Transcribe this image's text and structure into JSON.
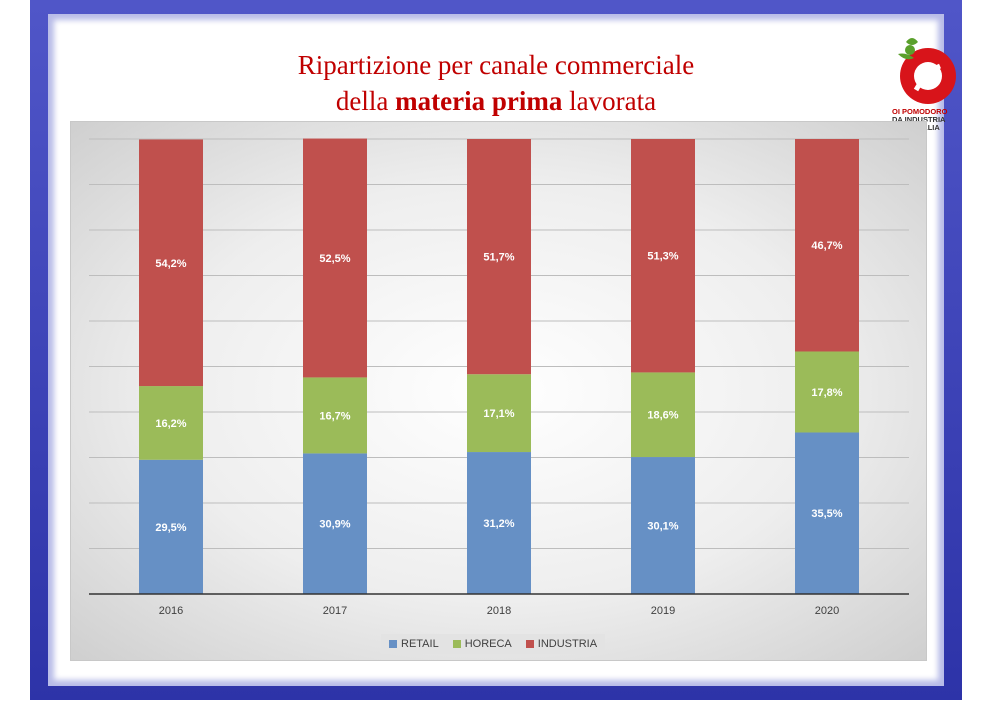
{
  "slide": {
    "title_line1": "Ripartizione per canale commerciale",
    "title_line2_pre": "della ",
    "title_line2_bold": "materia prima",
    "title_line2_post": " lavorata"
  },
  "logo": {
    "line1_a": "OI ",
    "line1_b": "POMODORO",
    "line2": "DA INDUSTRIA",
    "line3": "NORD ITALIA"
  },
  "chart_data": {
    "type": "bar",
    "stacked": true,
    "categories": [
      "2016",
      "2017",
      "2018",
      "2019",
      "2020"
    ],
    "series": [
      {
        "name": "RETAIL",
        "color": "#6690c5",
        "values": [
          29.5,
          30.9,
          31.2,
          30.1,
          35.5
        ],
        "labels": [
          "29,5%",
          "30,9%",
          "31,2%",
          "30,1%",
          "35,5%"
        ]
      },
      {
        "name": "HORECA",
        "color": "#9bbb59",
        "values": [
          16.2,
          16.7,
          17.1,
          18.6,
          17.8
        ],
        "labels": [
          "16,2%",
          "16,7%",
          "17,1%",
          "18,6%",
          "17,8%"
        ]
      },
      {
        "name": "INDUSTRIA",
        "color": "#c0504d",
        "values": [
          54.2,
          52.5,
          51.7,
          51.3,
          46.7
        ],
        "labels": [
          "54,2%",
          "52,5%",
          "51,7%",
          "51,3%",
          "46,7%"
        ]
      }
    ],
    "title": "",
    "xlabel": "",
    "ylabel": "",
    "ylim": [
      0,
      100
    ],
    "grid": true,
    "legend_position": "bottom"
  }
}
